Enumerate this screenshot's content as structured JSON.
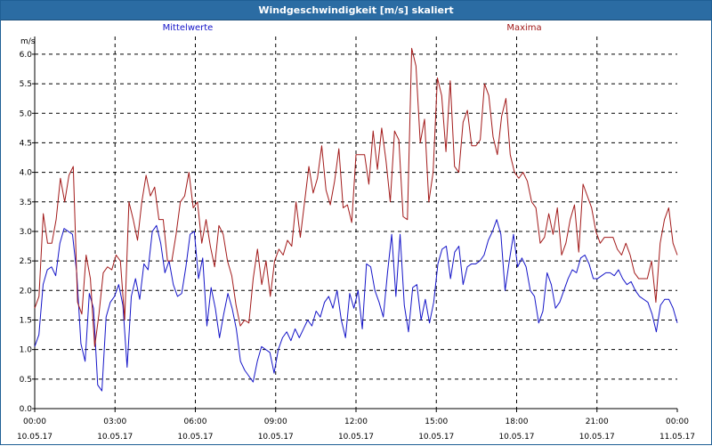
{
  "window": {
    "title": "Windgeschwindigkeit [m/s] skaliert"
  },
  "colors": {
    "titlebar": "#2b6ca3",
    "mean": "#1515c8",
    "max": "#a21a1a",
    "grid": "#000000"
  },
  "chart_data": {
    "type": "line",
    "title": "Windgeschwindigkeit [m/s] skaliert",
    "ylabel": "m/s",
    "xlabel": "",
    "ylim": [
      0,
      6.3
    ],
    "yticks": [
      "0.0",
      "0.5",
      "1.0",
      "1.5",
      "2.0",
      "2.5",
      "3.0",
      "3.5",
      "4.0",
      "4.5",
      "5.0",
      "5.5",
      "6.0"
    ],
    "xticks": [
      {
        "time": "00:00",
        "date": "10.05.17"
      },
      {
        "time": "03:00",
        "date": "10.05.17"
      },
      {
        "time": "06:00",
        "date": "10.05.17"
      },
      {
        "time": "09:00",
        "date": "10.05.17"
      },
      {
        "time": "12:00",
        "date": "10.05.17"
      },
      {
        "time": "15:00",
        "date": "10.05.17"
      },
      {
        "time": "18:00",
        "date": "10.05.17"
      },
      {
        "time": "21:00",
        "date": "10.05.17"
      },
      {
        "time": "00:00",
        "date": "11.05.17"
      }
    ],
    "grid": true,
    "legend": "top",
    "series": [
      {
        "name": "Mittelwerte",
        "color": "#1515c8",
        "values": [
          1.05,
          1.25,
          2.1,
          2.35,
          2.4,
          2.25,
          2.8,
          3.05,
          3.0,
          2.95,
          2.3,
          1.1,
          0.8,
          1.95,
          1.7,
          0.4,
          0.3,
          1.55,
          1.8,
          1.9,
          2.1,
          1.75,
          0.7,
          1.9,
          2.2,
          1.85,
          2.45,
          2.35,
          3.0,
          3.1,
          2.8,
          2.3,
          2.5,
          2.1,
          1.9,
          1.95,
          2.4,
          2.95,
          3.0,
          2.2,
          2.55,
          1.4,
          2.05,
          1.7,
          1.2,
          1.6,
          1.95,
          1.7,
          1.35,
          0.8,
          0.65,
          0.55,
          0.45,
          0.8,
          1.05,
          1.0,
          0.95,
          0.6,
          1.0,
          1.2,
          1.3,
          1.15,
          1.35,
          1.2,
          1.35,
          1.5,
          1.4,
          1.65,
          1.55,
          1.8,
          1.9,
          1.7,
          2.0,
          1.5,
          1.2,
          1.95,
          1.7,
          2.0,
          1.35,
          2.45,
          2.4,
          2.0,
          1.8,
          1.55,
          2.3,
          2.95,
          1.9,
          2.95,
          1.75,
          1.3,
          2.05,
          2.1,
          1.5,
          1.85,
          1.45,
          1.8,
          2.45,
          2.7,
          2.75,
          2.2,
          2.65,
          2.75,
          2.1,
          2.4,
          2.45,
          2.45,
          2.5,
          2.6,
          2.85,
          3.0,
          3.2,
          2.95,
          2.0,
          2.5,
          2.95,
          2.4,
          2.55,
          2.4,
          2.0,
          1.9,
          1.45,
          1.65,
          2.3,
          2.1,
          1.7,
          1.8,
          2.0,
          2.2,
          2.35,
          2.3,
          2.55,
          2.6,
          2.45,
          2.2,
          2.2,
          2.25,
          2.3,
          2.3,
          2.25,
          2.35,
          2.2,
          2.1,
          2.15,
          2.0,
          1.9,
          1.85,
          1.8,
          1.6,
          1.3,
          1.75,
          1.85,
          1.85,
          1.7,
          1.45
        ]
      },
      {
        "name": "Maxima",
        "color": "#a21a1a",
        "values": [
          1.7,
          1.9,
          3.3,
          2.8,
          2.8,
          3.2,
          3.9,
          3.5,
          3.95,
          4.1,
          1.8,
          1.6,
          2.6,
          2.2,
          1.05,
          1.6,
          2.3,
          2.4,
          2.35,
          2.6,
          2.5,
          1.5,
          3.5,
          3.2,
          2.85,
          3.5,
          3.95,
          3.6,
          3.75,
          3.2,
          3.2,
          2.5,
          2.5,
          2.95,
          3.5,
          3.6,
          4.0,
          3.4,
          3.5,
          2.8,
          3.2,
          2.75,
          2.4,
          3.1,
          2.95,
          2.5,
          2.25,
          1.75,
          1.4,
          1.5,
          1.45,
          2.2,
          2.7,
          2.1,
          2.5,
          1.9,
          2.5,
          2.7,
          2.6,
          2.85,
          2.75,
          3.5,
          2.9,
          3.5,
          4.1,
          3.65,
          3.9,
          4.45,
          3.7,
          3.45,
          3.85,
          4.4,
          3.4,
          3.45,
          3.15,
          4.3,
          4.3,
          4.3,
          3.8,
          4.7,
          4.05,
          4.75,
          4.2,
          3.5,
          4.7,
          4.55,
          3.25,
          3.2,
          6.1,
          5.8,
          4.5,
          4.9,
          3.5,
          4.0,
          5.6,
          5.3,
          4.35,
          5.55,
          4.1,
          4.0,
          4.85,
          5.05,
          4.45,
          4.45,
          4.55,
          5.5,
          5.3,
          4.6,
          4.3,
          4.95,
          5.25,
          4.3,
          4.0,
          3.9,
          4.0,
          3.85,
          3.5,
          3.4,
          2.8,
          2.9,
          3.3,
          2.95,
          3.4,
          2.6,
          2.8,
          3.2,
          3.45,
          2.65,
          3.8,
          3.6,
          3.4,
          3.0,
          2.8,
          2.9,
          2.9,
          2.9,
          2.7,
          2.6,
          2.8,
          2.6,
          2.3,
          2.2,
          2.2,
          2.2,
          2.5,
          1.8,
          2.8,
          3.2,
          3.4,
          2.8,
          2.6
        ]
      }
    ]
  }
}
